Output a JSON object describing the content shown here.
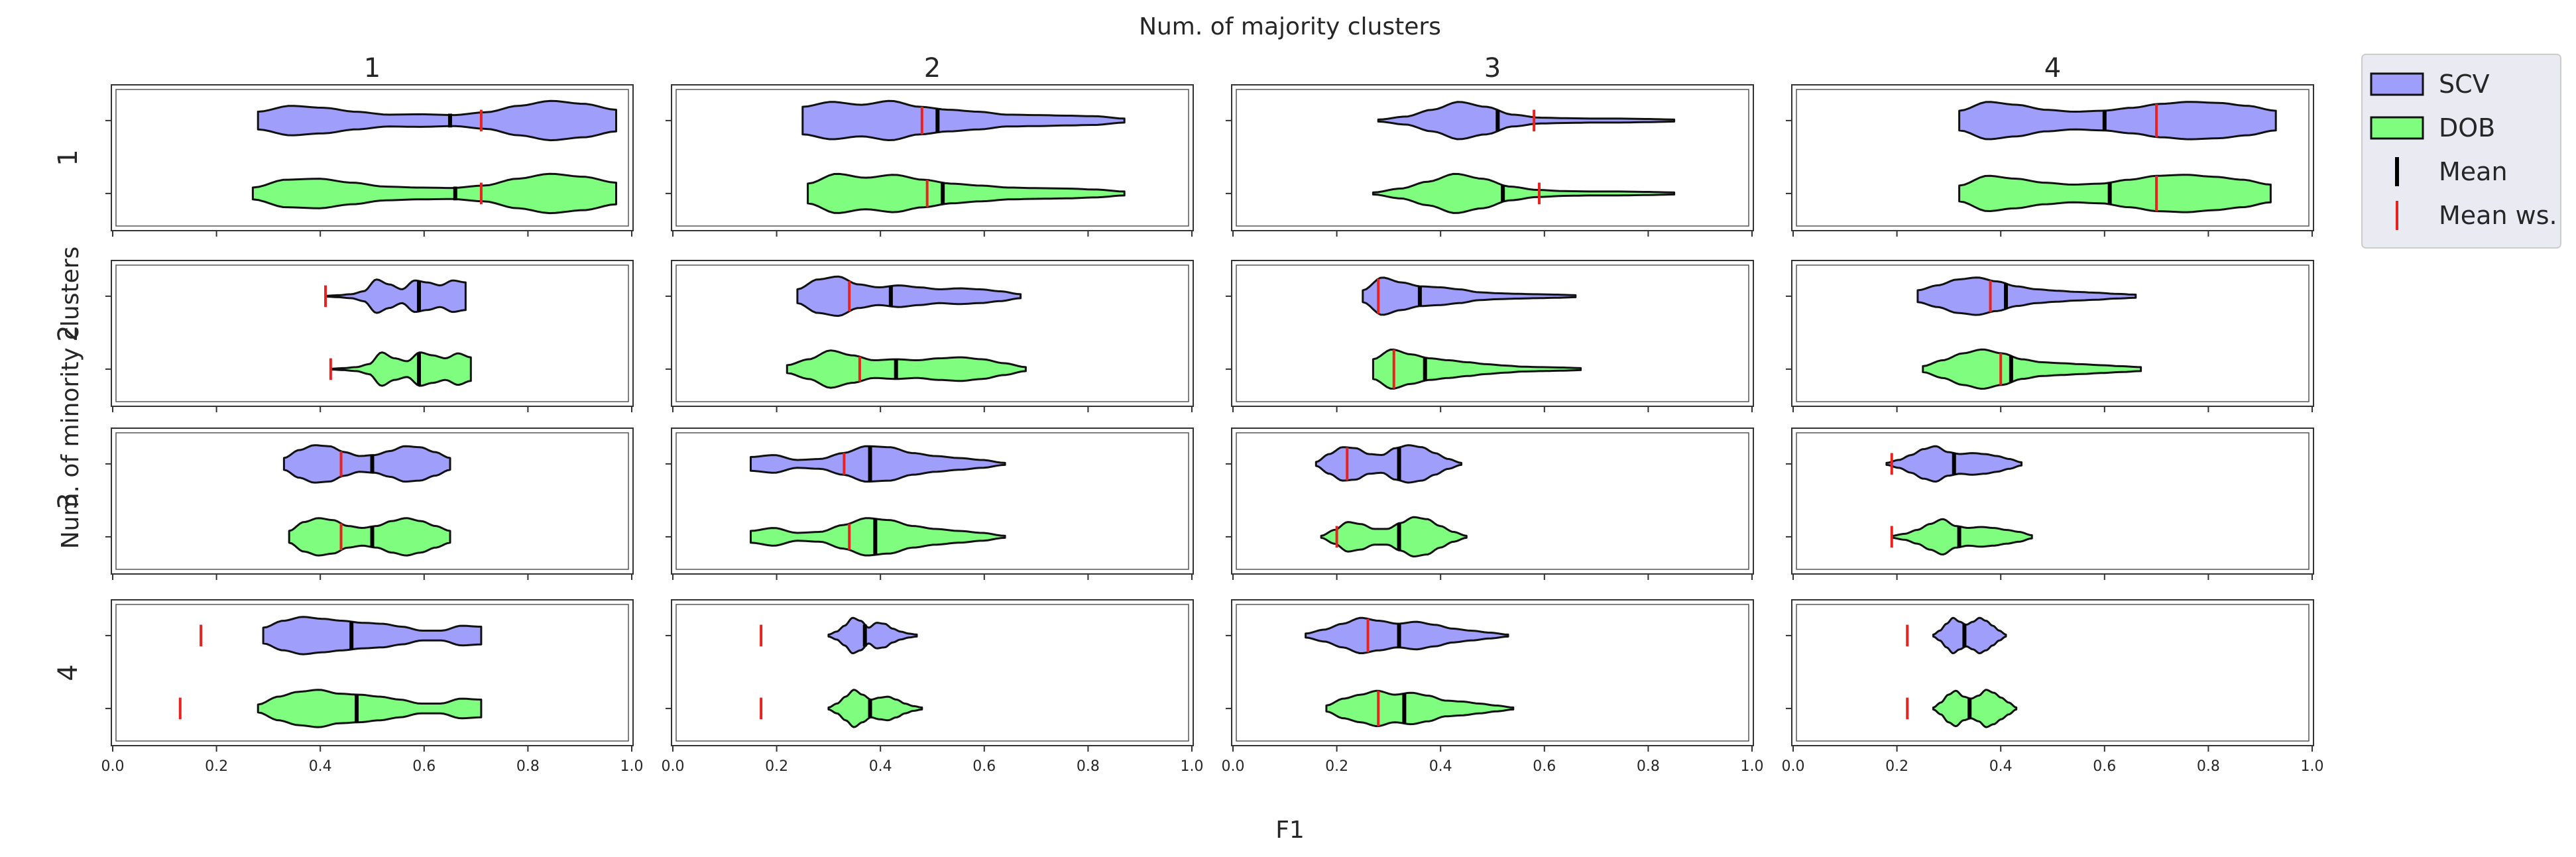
{
  "figure": {
    "suptitle": "Num. of majority clusters",
    "xlabel": "F1",
    "ylabel": "Num. of minority clusters"
  },
  "colors": {
    "scv": "#9f9ffb",
    "dob": "#7ffd7f",
    "mean": "#000000",
    "mean_ws": "#e8231f",
    "outline": "#111111"
  },
  "legend": {
    "items": [
      {
        "label": "SCV",
        "kind": "patch",
        "color": "#9f9ffb"
      },
      {
        "label": "DOB",
        "kind": "patch",
        "color": "#7ffd7f"
      },
      {
        "label": "Mean",
        "kind": "line",
        "color": "#000000"
      },
      {
        "label": "Mean ws.",
        "kind": "line",
        "color": "#e8231f"
      }
    ]
  },
  "chart_data": {
    "type": "violin",
    "orientation": "horizontal",
    "col_labels": [
      "1",
      "2",
      "3",
      "4"
    ],
    "row_labels": [
      "1",
      "2",
      "3",
      "4"
    ],
    "xlim": [
      0.0,
      1.0
    ],
    "xticks": [
      "0.0",
      "0.2",
      "0.4",
      "0.6",
      "0.8",
      "1.0"
    ],
    "series": [
      "SCV",
      "DOB"
    ],
    "panels": [
      {
        "row": "1",
        "col": "1",
        "SCV": {
          "min": 0.28,
          "max": 0.97,
          "mean": 0.65,
          "mean_ws": 0.71,
          "density": [
            0.45,
            0.75,
            0.65,
            0.45,
            0.3,
            0.32,
            0.28,
            0.42,
            0.75,
            1.0,
            0.85,
            0.55
          ]
        },
        "DOB": {
          "min": 0.27,
          "max": 0.97,
          "mean": 0.66,
          "mean_ws": 0.71,
          "density": [
            0.3,
            0.7,
            0.75,
            0.55,
            0.35,
            0.3,
            0.28,
            0.4,
            0.75,
            1.0,
            0.85,
            0.55
          ]
        }
      },
      {
        "row": "1",
        "col": "2",
        "SCV": {
          "min": 0.25,
          "max": 0.87,
          "mean": 0.51,
          "mean_ws": 0.48,
          "density": [
            0.7,
            0.95,
            0.8,
            1.0,
            0.7,
            0.55,
            0.45,
            0.3,
            0.28,
            0.25,
            0.22,
            0.1
          ]
        },
        "DOB": {
          "min": 0.26,
          "max": 0.87,
          "mean": 0.52,
          "mean_ws": 0.49,
          "density": [
            0.5,
            1.0,
            0.8,
            0.95,
            0.7,
            0.5,
            0.4,
            0.3,
            0.27,
            0.25,
            0.2,
            0.1
          ]
        }
      },
      {
        "row": "1",
        "col": "3",
        "SCV": {
          "min": 0.28,
          "max": 0.85,
          "mean": 0.51,
          "mean_ws": 0.58,
          "density": [
            0.05,
            0.2,
            0.55,
            0.95,
            0.7,
            0.3,
            0.15,
            0.12,
            0.1,
            0.1,
            0.08,
            0.05
          ]
        },
        "DOB": {
          "min": 0.27,
          "max": 0.85,
          "mean": 0.52,
          "mean_ws": 0.59,
          "density": [
            0.05,
            0.25,
            0.6,
            1.0,
            0.75,
            0.35,
            0.18,
            0.12,
            0.1,
            0.1,
            0.08,
            0.05
          ]
        }
      },
      {
        "row": "1",
        "col": "4",
        "SCV": {
          "min": 0.32,
          "max": 0.93,
          "mean": 0.6,
          "mean_ws": 0.7,
          "density": [
            0.5,
            0.95,
            0.8,
            0.55,
            0.45,
            0.5,
            0.65,
            0.85,
            0.95,
            0.9,
            0.75,
            0.5
          ]
        },
        "DOB": {
          "min": 0.32,
          "max": 0.92,
          "mean": 0.61,
          "mean_ws": 0.7,
          "density": [
            0.4,
            0.9,
            0.75,
            0.55,
            0.45,
            0.5,
            0.7,
            0.9,
            0.95,
            0.85,
            0.7,
            0.45
          ]
        }
      },
      {
        "row": "2",
        "col": "1",
        "SCV": {
          "min": 0.41,
          "max": 0.68,
          "mean": 0.59,
          "mean_ws": 0.41,
          "density": [
            0.02,
            0.05,
            0.1,
            0.25,
            0.85,
            0.6,
            0.35,
            0.8,
            0.7,
            0.55,
            0.8,
            0.7
          ]
        },
        "DOB": {
          "min": 0.42,
          "max": 0.69,
          "mean": 0.59,
          "mean_ws": 0.42,
          "density": [
            0.02,
            0.05,
            0.1,
            0.25,
            0.85,
            0.55,
            0.4,
            0.85,
            0.7,
            0.55,
            0.8,
            0.6
          ]
        }
      },
      {
        "row": "2",
        "col": "2",
        "SCV": {
          "min": 0.24,
          "max": 0.67,
          "mean": 0.42,
          "mean_ws": 0.34,
          "density": [
            0.35,
            0.85,
            1.0,
            0.6,
            0.45,
            0.55,
            0.45,
            0.35,
            0.4,
            0.35,
            0.25,
            0.1
          ]
        },
        "DOB": {
          "min": 0.22,
          "max": 0.68,
          "mean": 0.43,
          "mean_ws": 0.36,
          "density": [
            0.2,
            0.5,
            0.95,
            0.7,
            0.45,
            0.5,
            0.45,
            0.55,
            0.6,
            0.5,
            0.3,
            0.1
          ]
        }
      },
      {
        "row": "2",
        "col": "3",
        "SCV": {
          "min": 0.25,
          "max": 0.66,
          "mean": 0.36,
          "mean_ws": 0.28,
          "density": [
            0.3,
            0.95,
            0.7,
            0.5,
            0.45,
            0.35,
            0.2,
            0.15,
            0.12,
            0.1,
            0.08,
            0.05
          ]
        },
        "DOB": {
          "min": 0.27,
          "max": 0.67,
          "mean": 0.37,
          "mean_ws": 0.31,
          "density": [
            0.5,
            1.0,
            0.75,
            0.55,
            0.45,
            0.35,
            0.25,
            0.18,
            0.12,
            0.1,
            0.08,
            0.05
          ]
        }
      },
      {
        "row": "2",
        "col": "4",
        "SCV": {
          "min": 0.24,
          "max": 0.66,
          "mean": 0.41,
          "mean_ws": 0.38,
          "density": [
            0.3,
            0.55,
            0.85,
            0.95,
            0.75,
            0.5,
            0.35,
            0.28,
            0.22,
            0.18,
            0.12,
            0.08
          ]
        },
        "DOB": {
          "min": 0.25,
          "max": 0.67,
          "mean": 0.42,
          "mean_ws": 0.4,
          "density": [
            0.15,
            0.45,
            0.8,
            1.0,
            0.8,
            0.5,
            0.35,
            0.3,
            0.25,
            0.2,
            0.15,
            0.1
          ]
        }
      },
      {
        "row": "3",
        "col": "1",
        "SCV": {
          "min": 0.33,
          "max": 0.65,
          "mean": 0.5,
          "mean_ws": 0.44,
          "density": [
            0.3,
            0.7,
            0.95,
            0.9,
            0.6,
            0.4,
            0.45,
            0.65,
            0.9,
            0.85,
            0.6,
            0.3
          ]
        },
        "DOB": {
          "min": 0.34,
          "max": 0.65,
          "mean": 0.5,
          "mean_ws": 0.44,
          "density": [
            0.3,
            0.75,
            0.95,
            0.85,
            0.55,
            0.45,
            0.55,
            0.8,
            0.95,
            0.8,
            0.55,
            0.3
          ]
        }
      },
      {
        "row": "3",
        "col": "2",
        "SCV": {
          "min": 0.15,
          "max": 0.64,
          "mean": 0.38,
          "mean_ws": 0.33,
          "density": [
            0.35,
            0.45,
            0.2,
            0.25,
            0.55,
            0.9,
            0.85,
            0.55,
            0.4,
            0.3,
            0.2,
            0.05
          ]
        },
        "DOB": {
          "min": 0.15,
          "max": 0.64,
          "mean": 0.39,
          "mean_ws": 0.34,
          "density": [
            0.3,
            0.45,
            0.2,
            0.25,
            0.6,
            0.95,
            0.85,
            0.55,
            0.4,
            0.3,
            0.2,
            0.05
          ]
        }
      },
      {
        "row": "3",
        "col": "3",
        "SCV": {
          "min": 0.16,
          "max": 0.44,
          "mean": 0.32,
          "mean_ws": 0.22,
          "density": [
            0.1,
            0.5,
            0.85,
            0.8,
            0.5,
            0.45,
            0.8,
            0.95,
            0.85,
            0.55,
            0.25,
            0.05
          ]
        },
        "DOB": {
          "min": 0.17,
          "max": 0.45,
          "mean": 0.32,
          "mean_ws": 0.2,
          "density": [
            0.05,
            0.35,
            0.75,
            0.65,
            0.4,
            0.4,
            0.7,
            1.0,
            0.9,
            0.55,
            0.25,
            0.05
          ]
        }
      },
      {
        "row": "3",
        "col": "4",
        "SCV": {
          "min": 0.18,
          "max": 0.44,
          "mean": 0.31,
          "mean_ws": 0.19,
          "density": [
            0.05,
            0.2,
            0.45,
            0.75,
            0.9,
            0.6,
            0.5,
            0.55,
            0.5,
            0.4,
            0.25,
            0.08
          ]
        },
        "DOB": {
          "min": 0.19,
          "max": 0.46,
          "mean": 0.32,
          "mean_ws": 0.19,
          "density": [
            0.05,
            0.15,
            0.35,
            0.65,
            0.9,
            0.55,
            0.45,
            0.5,
            0.45,
            0.35,
            0.25,
            0.08
          ]
        }
      },
      {
        "row": "4",
        "col": "1",
        "SCV": {
          "min": 0.29,
          "max": 0.71,
          "mean": 0.46,
          "mean_ws": 0.17,
          "density": [
            0.4,
            0.75,
            0.95,
            0.85,
            0.75,
            0.65,
            0.6,
            0.45,
            0.25,
            0.25,
            0.5,
            0.45
          ]
        },
        "DOB": {
          "min": 0.28,
          "max": 0.71,
          "mean": 0.47,
          "mean_ws": 0.13,
          "density": [
            0.2,
            0.6,
            0.85,
            0.95,
            0.75,
            0.7,
            0.6,
            0.45,
            0.25,
            0.25,
            0.5,
            0.45
          ]
        }
      },
      {
        "row": "4",
        "col": "2",
        "SCV": {
          "min": 0.3,
          "max": 0.47,
          "mean": 0.37,
          "mean_ws": 0.17,
          "density": [
            0.05,
            0.2,
            0.5,
            0.9,
            0.75,
            0.4,
            0.65,
            0.6,
            0.35,
            0.2,
            0.1,
            0.05
          ]
        },
        "DOB": {
          "min": 0.3,
          "max": 0.48,
          "mean": 0.38,
          "mean_ws": 0.17,
          "density": [
            0.05,
            0.25,
            0.6,
            0.95,
            0.7,
            0.45,
            0.55,
            0.6,
            0.45,
            0.25,
            0.12,
            0.05
          ]
        }
      },
      {
        "row": "4",
        "col": "3",
        "SCV": {
          "min": 0.14,
          "max": 0.53,
          "mean": 0.32,
          "mean_ws": 0.26,
          "density": [
            0.1,
            0.3,
            0.6,
            0.9,
            0.75,
            0.6,
            0.7,
            0.55,
            0.35,
            0.25,
            0.15,
            0.05
          ]
        },
        "DOB": {
          "min": 0.18,
          "max": 0.54,
          "mean": 0.33,
          "mean_ws": 0.28,
          "density": [
            0.15,
            0.5,
            0.7,
            0.9,
            0.7,
            0.8,
            0.65,
            0.4,
            0.35,
            0.25,
            0.15,
            0.05
          ]
        }
      },
      {
        "row": "4",
        "col": "4",
        "SCV": {
          "min": 0.27,
          "max": 0.41,
          "mean": 0.33,
          "mean_ws": 0.22,
          "density": [
            0.05,
            0.25,
            0.6,
            0.9,
            0.7,
            0.55,
            0.7,
            0.9,
            0.75,
            0.5,
            0.25,
            0.05
          ]
        },
        "DOB": {
          "min": 0.27,
          "max": 0.43,
          "mean": 0.34,
          "mean_ws": 0.22,
          "density": [
            0.05,
            0.3,
            0.7,
            0.9,
            0.6,
            0.5,
            0.65,
            0.95,
            0.8,
            0.55,
            0.3,
            0.05
          ]
        }
      }
    ]
  }
}
